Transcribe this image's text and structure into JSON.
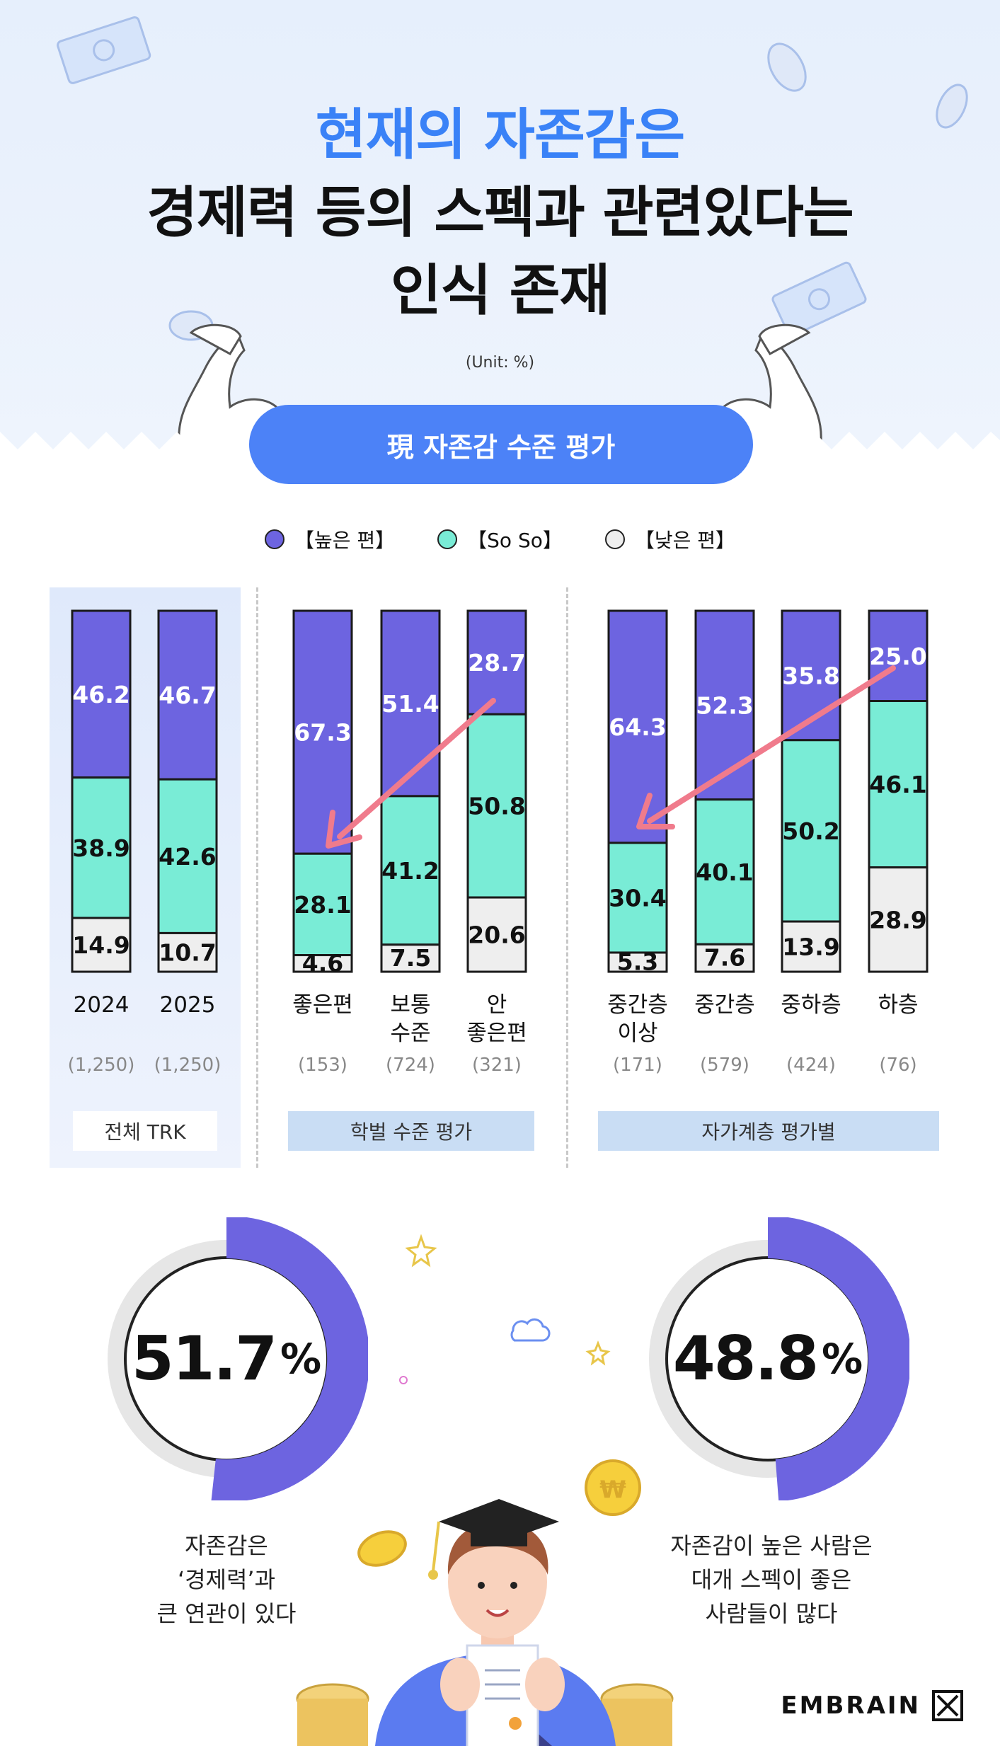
{
  "header": {
    "title_line1": "현재의 자존감은",
    "title_line2": "경제력 등의 스펙과 관련있다는",
    "title_line3": "인식 존재",
    "unit": "(Unit: %)",
    "section_pill": "現 자존감 수준 평가"
  },
  "legend": [
    {
      "label": "【높은 편】",
      "color": "#6d64e0"
    },
    {
      "label": "【So So】",
      "color": "#79ecd6"
    },
    {
      "label": "【낮은 편】",
      "color": "#eeeeee"
    }
  ],
  "chart_data": {
    "type": "bar",
    "stacked": true,
    "unit": "%",
    "series_names": [
      "높은 편",
      "So So",
      "낮은 편"
    ],
    "colors": [
      "#6d64e0",
      "#79ecd6",
      "#eeeeee"
    ],
    "groups": [
      {
        "label": "전체 TRK",
        "bars": [
          {
            "category": "2024",
            "n": "(1,250)",
            "values": [
              46.2,
              38.9,
              14.9
            ]
          },
          {
            "category": "2025",
            "n": "(1,250)",
            "values": [
              46.7,
              42.6,
              10.7
            ]
          }
        ]
      },
      {
        "label": "학벌 수준 평가",
        "bars": [
          {
            "category": "좋은편",
            "n": "(153)",
            "values": [
              67.3,
              28.1,
              4.6
            ]
          },
          {
            "category": "보통\n수준",
            "n": "(724)",
            "values": [
              51.4,
              41.2,
              7.5
            ]
          },
          {
            "category": "안\n좋은편",
            "n": "(321)",
            "values": [
              28.7,
              50.8,
              20.6
            ]
          }
        ]
      },
      {
        "label": "자가계층 평가별",
        "bars": [
          {
            "category": "중간층\n이상",
            "n": "(171)",
            "values": [
              64.3,
              30.4,
              5.3
            ]
          },
          {
            "category": "중간층",
            "n": "(579)",
            "values": [
              52.3,
              40.1,
              7.6
            ]
          },
          {
            "category": "중하층",
            "n": "(424)",
            "values": [
              35.8,
              50.2,
              13.9
            ]
          },
          {
            "category": "하층",
            "n": "(76)",
            "values": [
              25.0,
              46.1,
              28.9
            ]
          }
        ]
      }
    ]
  },
  "stats": [
    {
      "value": 51.7,
      "value_text": "51.7",
      "suffix": "%",
      "caption": [
        "자존감은",
        "‘경제력’과",
        "큰 연관이 있다"
      ]
    },
    {
      "value": 48.8,
      "value_text": "48.8",
      "suffix": "%",
      "caption": [
        "자존감이 높은 사람은",
        "대개 스펙이 좋은",
        "사람들이 많다"
      ]
    }
  ],
  "brand": {
    "name": "EMBRAIN"
  }
}
